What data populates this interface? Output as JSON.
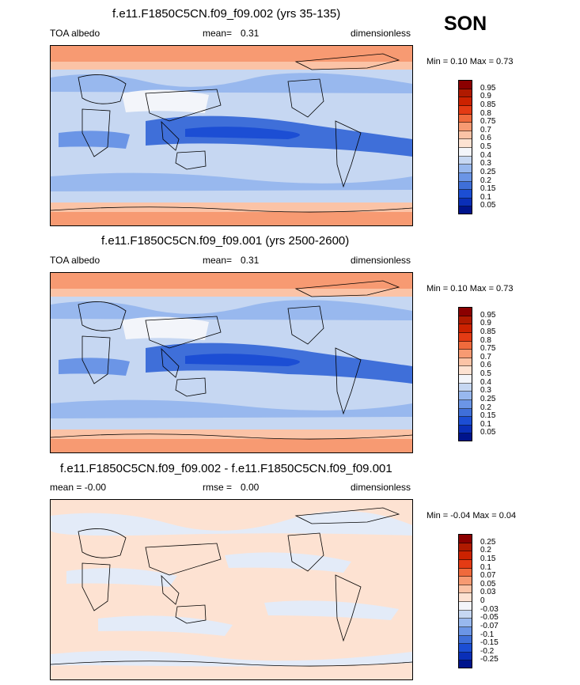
{
  "season": "SON",
  "panels": [
    {
      "title": "f.e11.F1850C5CN.f09_f09.002 (yrs 35-135)",
      "left_label": "TOA albedo",
      "mid_label": "mean=",
      "mid_value": "0.31",
      "units": "dimensionless",
      "minmax": "Min =  0.10 Max =  0.73",
      "colorbar_levels": [
        "0.95",
        "0.9",
        "0.85",
        "0.8",
        "0.75",
        "0.7",
        "0.6",
        "0.5",
        "0.4",
        "0.3",
        "0.25",
        "0.2",
        "0.15",
        "0.1",
        "0.05"
      ],
      "colorbar_colors": [
        "#8b0000",
        "#b01a00",
        "#cc2200",
        "#e43b14",
        "#f06a3c",
        "#f79a72",
        "#fbc3a6",
        "#fde2d2",
        "#f3f5fa",
        "#c6d7f2",
        "#98b8ee",
        "#6b95e6",
        "#3f6fd9",
        "#1c4ed4",
        "#0a2fb8",
        "#00148c"
      ],
      "map_style": "full"
    },
    {
      "title": "f.e11.F1850C5CN.f09_f09.001 (yrs 2500-2600)",
      "left_label": "TOA albedo",
      "mid_label": "mean=",
      "mid_value": "0.31",
      "units": "dimensionless",
      "minmax": "Min =  0.10 Max =  0.73",
      "colorbar_levels": [
        "0.95",
        "0.9",
        "0.85",
        "0.8",
        "0.75",
        "0.7",
        "0.6",
        "0.5",
        "0.4",
        "0.3",
        "0.25",
        "0.2",
        "0.15",
        "0.1",
        "0.05"
      ],
      "colorbar_colors": [
        "#8b0000",
        "#b01a00",
        "#cc2200",
        "#e43b14",
        "#f06a3c",
        "#f79a72",
        "#fbc3a6",
        "#fde2d2",
        "#f3f5fa",
        "#c6d7f2",
        "#98b8ee",
        "#6b95e6",
        "#3f6fd9",
        "#1c4ed4",
        "#0a2fb8",
        "#00148c"
      ],
      "map_style": "full"
    },
    {
      "title": "f.e11.F1850C5CN.f09_f09.002 - f.e11.F1850C5CN.f09_f09.001",
      "left_label": "mean = ",
      "left_value": "-0.00",
      "mid_label": "rmse =",
      "mid_value": "0.00",
      "units": "dimensionless",
      "minmax": "Min = -0.04 Max =  0.04",
      "colorbar_levels": [
        "0.25",
        "0.2",
        "0.15",
        "0.1",
        "0.07",
        "0.05",
        "0.03",
        "0",
        "-0.03",
        "-0.05",
        "-0.07",
        "-0.1",
        "-0.15",
        "-0.2",
        "-0.25"
      ],
      "colorbar_colors": [
        "#8b0000",
        "#b01a00",
        "#cc2200",
        "#e43b14",
        "#f06a3c",
        "#f79a72",
        "#fbc3a6",
        "#fde2d2",
        "#f3f5fa",
        "#c6d7f2",
        "#98b8ee",
        "#6b95e6",
        "#3f6fd9",
        "#1c4ed4",
        "#0a2fb8",
        "#00148c"
      ],
      "map_style": "diff"
    }
  ]
}
